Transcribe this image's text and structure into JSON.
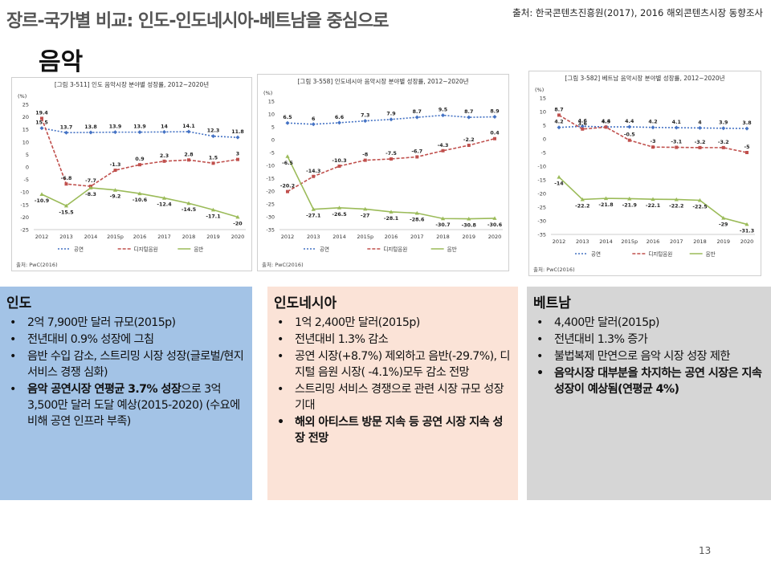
{
  "header": {
    "title": "장르-국가별 비교: 인도-인도네시아-베트남을 중심으로",
    "source": "출처: 한국콘텐츠진흥원(2017), 2016 해외콘텐츠시장 동향조사",
    "section": "음악"
  },
  "chart_data": [
    {
      "type": "line",
      "title": "[그림 3-511] 인도 음악시장 분야별 성장률, 2012~2020년",
      "source": "출처: PwC(2016)",
      "x": [
        "2012",
        "2013",
        "2014",
        "2015p",
        "2016",
        "2017",
        "2018",
        "2019",
        "2020"
      ],
      "ylim": [
        -25,
        25
      ],
      "yticks": [
        25,
        20,
        15,
        10,
        5,
        0,
        -5,
        -10,
        -15,
        -20,
        -25
      ],
      "ylabel": "(%)",
      "series": [
        {
          "name": "공연",
          "color": "#4472c4",
          "values": [
            15.5,
            13.7,
            13.8,
            13.9,
            13.9,
            14.0,
            14.1,
            12.3,
            11.8
          ]
        },
        {
          "name": "디지털음원",
          "color": "#c0504d",
          "values": [
            19.4,
            -6.8,
            -7.7,
            -1.3,
            0.9,
            2.3,
            2.8,
            1.5,
            3.0
          ]
        },
        {
          "name": "음반",
          "color": "#9bbb59",
          "values": [
            -10.9,
            -15.5,
            -8.3,
            -9.2,
            -10.6,
            -12.4,
            -14.5,
            -17.1,
            -20.0
          ]
        }
      ]
    },
    {
      "type": "line",
      "title": "[그림 3-558] 인도네시아 음악시장 분야별 성장률, 2012~2020년",
      "source": "출처: PwC(2016)",
      "x": [
        "2012",
        "2013",
        "2014",
        "2015p",
        "2016",
        "2017",
        "2018",
        "2019",
        "2020"
      ],
      "ylim": [
        -35,
        15
      ],
      "yticks": [
        15,
        10,
        5,
        0,
        -5,
        -10,
        -15,
        -20,
        -25,
        -30,
        -35
      ],
      "ylabel": "(%)",
      "series": [
        {
          "name": "공연",
          "color": "#4472c4",
          "values": [
            6.5,
            6.0,
            6.6,
            7.3,
            7.9,
            8.7,
            9.5,
            8.7,
            8.9
          ]
        },
        {
          "name": "디지털음원",
          "color": "#c0504d",
          "values": [
            -20.2,
            -14.3,
            -10.3,
            -8.0,
            -7.5,
            -6.7,
            -4.3,
            -2.2,
            0.4
          ]
        },
        {
          "name": "음반",
          "color": "#9bbb59",
          "values": [
            -6.5,
            -27.1,
            -26.5,
            -27.0,
            -28.1,
            -28.6,
            -30.7,
            -30.8,
            -30.6
          ]
        }
      ]
    },
    {
      "type": "line",
      "title": "[그림 3-582] 베트남 음악시장 분야별 성장률, 2012~2020년",
      "source": "출처: PwC(2016)",
      "x": [
        "2012",
        "2013",
        "2014",
        "2015p",
        "2016",
        "2017",
        "2018",
        "2019",
        "2020"
      ],
      "ylim": [
        -35,
        15
      ],
      "yticks": [
        15,
        10,
        5,
        0,
        -5,
        -10,
        -15,
        -20,
        -25,
        -30,
        -35
      ],
      "ylabel": "(%)",
      "series": [
        {
          "name": "공연",
          "color": "#4472c4",
          "values": [
            4.2,
            4.6,
            4.4,
            4.4,
            4.2,
            4.1,
            4.0,
            3.9,
            3.8
          ]
        },
        {
          "name": "디지털음원",
          "color": "#c0504d",
          "values": [
            8.7,
            3.6,
            4.3,
            -0.5,
            -3.0,
            -3.1,
            -3.2,
            -3.2,
            -5.0
          ]
        },
        {
          "name": "음반",
          "color": "#9bbb59",
          "values": [
            -14.0,
            -22.2,
            -21.8,
            -21.9,
            -22.1,
            -22.2,
            -22.5,
            -29.0,
            -31.3
          ]
        }
      ]
    }
  ],
  "boxes": {
    "india": {
      "title": "인도",
      "items": [
        "2억 7,900만 달러 규모(2015p)",
        "전년대비 0.9% 성장에 그침",
        "음반 수입 감소, 스트리밍 시장 성장(글로벌/현지 서비스 경쟁 심화)"
      ],
      "last_bold": "음악 공연시장 연평균 3.7% 성장",
      "last_rest": "으로 3억3,500만 달러 도달 예상(2015-2020) (수요에 비해 공연 인프라 부족)"
    },
    "indonesia": {
      "title": "인도네시아",
      "items": [
        "1억 2,400만 달러(2015p)",
        "전년대비 1.3% 감소",
        "공연 시장(+8.7%) 제외하고 음반(-29.7%), 디지털 음원 시장( -4.1%)모두 감소 전망",
        "스트리밍 서비스 경쟁으로 관련 시장 규모 성장 기대"
      ],
      "bold_item": "해외 아티스트 방문 지속 등 공연 시장 지속 성장 전망"
    },
    "vietnam": {
      "title": "베트남",
      "items": [
        "4,400만 달러(2015p)",
        "전년대비 1.3% 증가",
        "불법복제 만연으로 음악 시장 성장 제한"
      ],
      "bold_item": "음악시장 대부분을 차지하는 공연 시장은 지속 성장이 예상됨(연평균 4%)"
    }
  },
  "page_number": "13"
}
